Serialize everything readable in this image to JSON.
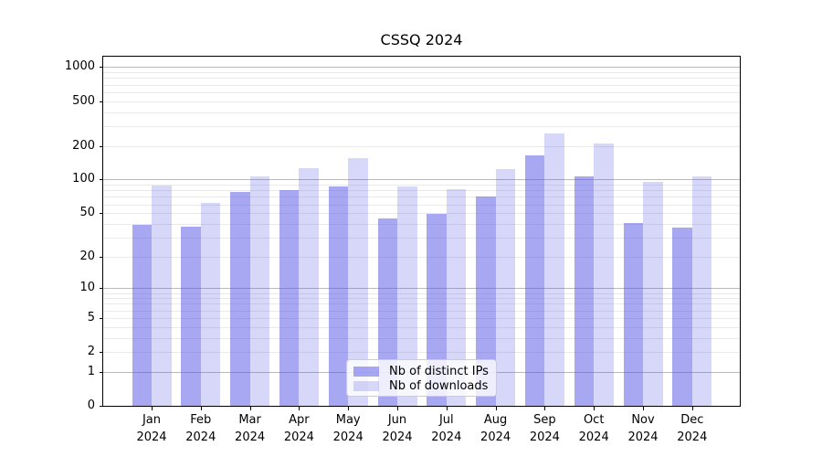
{
  "chart_data": {
    "type": "bar",
    "title": "CSSQ 2024",
    "categories": [
      "Jan",
      "Feb",
      "Mar",
      "Apr",
      "May",
      "Jun",
      "Jul",
      "Aug",
      "Sep",
      "Oct",
      "Nov",
      "Dec"
    ],
    "xtick_line2": "2024",
    "series": [
      {
        "name": "Nb of distinct IPs",
        "color": "rgba(88,88,230,0.52)",
        "values": [
          39,
          38,
          77,
          81,
          87,
          45,
          49,
          70,
          163,
          107,
          41,
          37
        ]
      },
      {
        "name": "Nb of downloads",
        "color": "rgba(88,88,230,0.24)",
        "values": [
          88,
          62,
          107,
          127,
          155,
          87,
          82,
          123,
          257,
          210,
          95,
          107
        ]
      }
    ],
    "yticks": [
      0,
      1,
      2,
      5,
      10,
      20,
      50,
      100,
      200,
      500,
      1000
    ],
    "xlabel": "",
    "ylabel": "",
    "yscale": "symlog",
    "ylim": [
      0,
      1000
    ],
    "grid": true,
    "legend_position": "bottom-center"
  },
  "colors": {
    "major_grid": "#b9b9b9",
    "minor_grid": "#e9e9e9",
    "spine": "#000000",
    "background": "#ffffff"
  }
}
